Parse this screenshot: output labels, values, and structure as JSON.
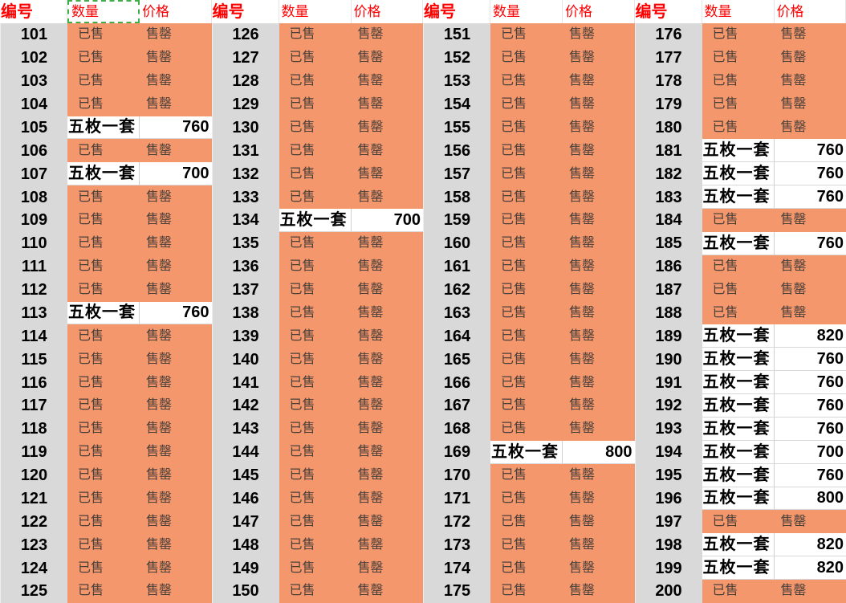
{
  "table": {
    "column_headers": {
      "id": "编号",
      "qty": "数量",
      "price": "价格"
    },
    "labels": {
      "sold_qty": "已售",
      "sold_out_price": "售罄",
      "set_qty": "五枚一套"
    },
    "marquee": {
      "group_index": 0,
      "column": "qty"
    },
    "colors": {
      "cell_orange": "#f5976c",
      "id_column_gray": "#d9d9d9",
      "header_red": "#ff0000",
      "marquee_green": "#3fae49",
      "sold_text": "#4a403a"
    },
    "groups": [
      {
        "rows": [
          {
            "n": "101",
            "type": "sold"
          },
          {
            "n": "102",
            "type": "sold"
          },
          {
            "n": "103",
            "type": "sold"
          },
          {
            "n": "104",
            "type": "sold"
          },
          {
            "n": "105",
            "type": "set",
            "price": "760"
          },
          {
            "n": "106",
            "type": "sold"
          },
          {
            "n": "107",
            "type": "set",
            "price": "700"
          },
          {
            "n": "108",
            "type": "sold"
          },
          {
            "n": "109",
            "type": "sold"
          },
          {
            "n": "110",
            "type": "sold"
          },
          {
            "n": "111",
            "type": "sold"
          },
          {
            "n": "112",
            "type": "sold"
          },
          {
            "n": "113",
            "type": "set",
            "price": "760"
          },
          {
            "n": "114",
            "type": "sold"
          },
          {
            "n": "115",
            "type": "sold"
          },
          {
            "n": "116",
            "type": "sold"
          },
          {
            "n": "117",
            "type": "sold"
          },
          {
            "n": "118",
            "type": "sold"
          },
          {
            "n": "119",
            "type": "sold"
          },
          {
            "n": "120",
            "type": "sold"
          },
          {
            "n": "121",
            "type": "sold"
          },
          {
            "n": "122",
            "type": "sold"
          },
          {
            "n": "123",
            "type": "sold"
          },
          {
            "n": "124",
            "type": "sold"
          },
          {
            "n": "125",
            "type": "sold"
          }
        ]
      },
      {
        "rows": [
          {
            "n": "126",
            "type": "sold"
          },
          {
            "n": "127",
            "type": "sold"
          },
          {
            "n": "128",
            "type": "sold"
          },
          {
            "n": "129",
            "type": "sold"
          },
          {
            "n": "130",
            "type": "sold"
          },
          {
            "n": "131",
            "type": "sold"
          },
          {
            "n": "132",
            "type": "sold"
          },
          {
            "n": "133",
            "type": "sold"
          },
          {
            "n": "134",
            "type": "set",
            "price": "700"
          },
          {
            "n": "135",
            "type": "sold"
          },
          {
            "n": "136",
            "type": "sold"
          },
          {
            "n": "137",
            "type": "sold"
          },
          {
            "n": "138",
            "type": "sold"
          },
          {
            "n": "139",
            "type": "sold"
          },
          {
            "n": "140",
            "type": "sold"
          },
          {
            "n": "141",
            "type": "sold"
          },
          {
            "n": "142",
            "type": "sold"
          },
          {
            "n": "143",
            "type": "sold"
          },
          {
            "n": "144",
            "type": "sold"
          },
          {
            "n": "145",
            "type": "sold"
          },
          {
            "n": "146",
            "type": "sold"
          },
          {
            "n": "147",
            "type": "sold"
          },
          {
            "n": "148",
            "type": "sold"
          },
          {
            "n": "149",
            "type": "sold"
          },
          {
            "n": "150",
            "type": "sold"
          }
        ]
      },
      {
        "rows": [
          {
            "n": "151",
            "type": "sold"
          },
          {
            "n": "152",
            "type": "sold"
          },
          {
            "n": "153",
            "type": "sold"
          },
          {
            "n": "154",
            "type": "sold"
          },
          {
            "n": "155",
            "type": "sold"
          },
          {
            "n": "156",
            "type": "sold"
          },
          {
            "n": "157",
            "type": "sold"
          },
          {
            "n": "158",
            "type": "sold"
          },
          {
            "n": "159",
            "type": "sold"
          },
          {
            "n": "160",
            "type": "sold"
          },
          {
            "n": "161",
            "type": "sold"
          },
          {
            "n": "162",
            "type": "sold"
          },
          {
            "n": "163",
            "type": "sold"
          },
          {
            "n": "164",
            "type": "sold"
          },
          {
            "n": "165",
            "type": "sold"
          },
          {
            "n": "166",
            "type": "sold"
          },
          {
            "n": "167",
            "type": "sold"
          },
          {
            "n": "168",
            "type": "sold"
          },
          {
            "n": "169",
            "type": "set",
            "price": "800"
          },
          {
            "n": "170",
            "type": "sold"
          },
          {
            "n": "171",
            "type": "sold"
          },
          {
            "n": "172",
            "type": "sold"
          },
          {
            "n": "173",
            "type": "sold"
          },
          {
            "n": "174",
            "type": "sold"
          },
          {
            "n": "175",
            "type": "sold"
          }
        ]
      },
      {
        "rows": [
          {
            "n": "176",
            "type": "sold"
          },
          {
            "n": "177",
            "type": "sold"
          },
          {
            "n": "178",
            "type": "sold"
          },
          {
            "n": "179",
            "type": "sold"
          },
          {
            "n": "180",
            "type": "sold"
          },
          {
            "n": "181",
            "type": "set",
            "price": "760"
          },
          {
            "n": "182",
            "type": "set",
            "price": "760"
          },
          {
            "n": "183",
            "type": "set",
            "price": "760"
          },
          {
            "n": "184",
            "type": "sold"
          },
          {
            "n": "185",
            "type": "set",
            "price": "760"
          },
          {
            "n": "186",
            "type": "sold"
          },
          {
            "n": "187",
            "type": "sold"
          },
          {
            "n": "188",
            "type": "sold"
          },
          {
            "n": "189",
            "type": "set",
            "price": "820"
          },
          {
            "n": "190",
            "type": "set",
            "price": "760"
          },
          {
            "n": "191",
            "type": "set",
            "price": "760"
          },
          {
            "n": "192",
            "type": "set",
            "price": "760"
          },
          {
            "n": "193",
            "type": "set",
            "price": "760"
          },
          {
            "n": "194",
            "type": "set",
            "price": "700"
          },
          {
            "n": "195",
            "type": "set",
            "price": "760"
          },
          {
            "n": "196",
            "type": "set",
            "price": "800"
          },
          {
            "n": "197",
            "type": "sold"
          },
          {
            "n": "198",
            "type": "set",
            "price": "820"
          },
          {
            "n": "199",
            "type": "set",
            "price": "820"
          },
          {
            "n": "200",
            "type": "sold"
          }
        ]
      }
    ]
  }
}
